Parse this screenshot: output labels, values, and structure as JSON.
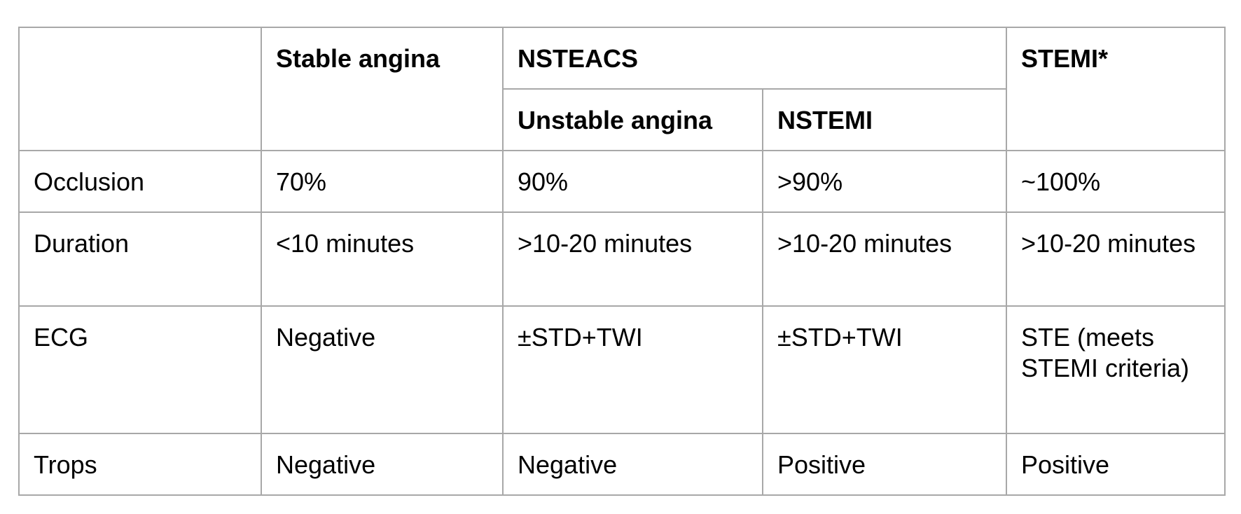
{
  "table": {
    "header": {
      "empty_corner": "",
      "stable_angina": "Stable angina",
      "nsteacs": "NSTEACS",
      "stemi": "STEMI*",
      "unstable_angina": "Unstable angina",
      "nstemi": "NSTEMI"
    },
    "rows": [
      {
        "label": "Occlusion",
        "stable_angina": "70%",
        "unstable_angina": "90%",
        "nstemi": ">90%",
        "stemi": "~100%"
      },
      {
        "label": "Duration",
        "stable_angina": "<10 minutes",
        "unstable_angina": ">10-20 minutes",
        "nstemi": ">10-20 minutes",
        "stemi": ">10-20 minutes"
      },
      {
        "label": "ECG",
        "stable_angina": "Negative",
        "unstable_angina": "±STD+TWI",
        "nstemi": "±STD+TWI",
        "stemi": "STE (meets STEMI criteria)"
      },
      {
        "label": "Trops",
        "stable_angina": "Negative",
        "unstable_angina": "Negative",
        "nstemi": "Positive",
        "stemi": "Positive"
      }
    ]
  }
}
